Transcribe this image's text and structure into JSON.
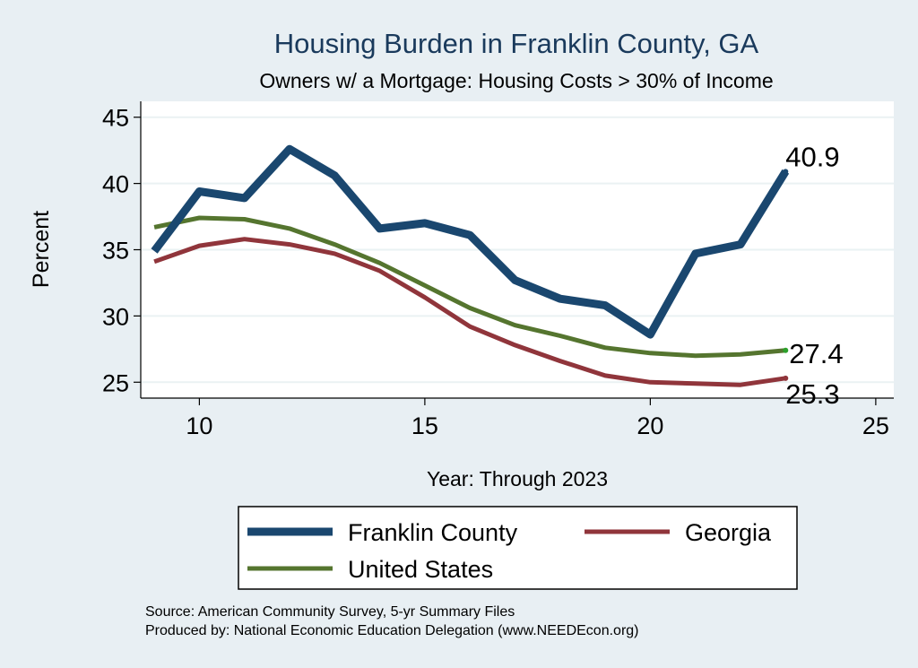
{
  "chart_data": {
    "type": "line",
    "title": "Housing Burden in Franklin County, GA",
    "subtitle": "Owners w/ a Mortgage: Housing Costs > 30% of Income",
    "xlabel": "Year: Through 2023",
    "ylabel": "Percent",
    "xlim": [
      8.7,
      25.4
    ],
    "ylim": [
      23.8,
      46.2
    ],
    "xticks": [
      10,
      15,
      20,
      25
    ],
    "yticks": [
      25,
      30,
      35,
      40,
      45
    ],
    "grid": true,
    "legend_position": "bottom",
    "x": [
      9,
      10,
      11,
      12,
      13,
      14,
      15,
      16,
      17,
      18,
      19,
      20,
      21,
      22,
      23
    ],
    "series": [
      {
        "name": "Franklin County",
        "color": "#1a476f",
        "values": [
          34.9,
          39.4,
          38.9,
          42.6,
          40.6,
          36.6,
          37.0,
          36.1,
          32.7,
          31.3,
          30.8,
          28.6,
          34.7,
          35.4,
          40.9
        ],
        "end_label": "40.9"
      },
      {
        "name": "Georgia",
        "color": "#90353b",
        "values": [
          34.1,
          35.3,
          35.8,
          35.4,
          34.7,
          33.4,
          31.4,
          29.2,
          27.8,
          26.6,
          25.5,
          25.0,
          24.9,
          24.8,
          25.3
        ],
        "end_label": "25.3"
      },
      {
        "name": "United States",
        "color": "#55752f",
        "values": [
          36.7,
          37.4,
          37.3,
          36.6,
          35.4,
          34.0,
          32.3,
          30.6,
          29.3,
          28.5,
          27.6,
          27.2,
          27.0,
          27.1,
          27.4
        ],
        "end_label": "27.4"
      }
    ]
  },
  "legend": {
    "order": [
      "Franklin County",
      "Georgia",
      "United States"
    ]
  },
  "footnote": {
    "line1": "Source: American Community Survey, 5-yr Summary Files",
    "line2": "Produced by: National Economic Education Delegation (www.NEEDEcon.org)"
  }
}
